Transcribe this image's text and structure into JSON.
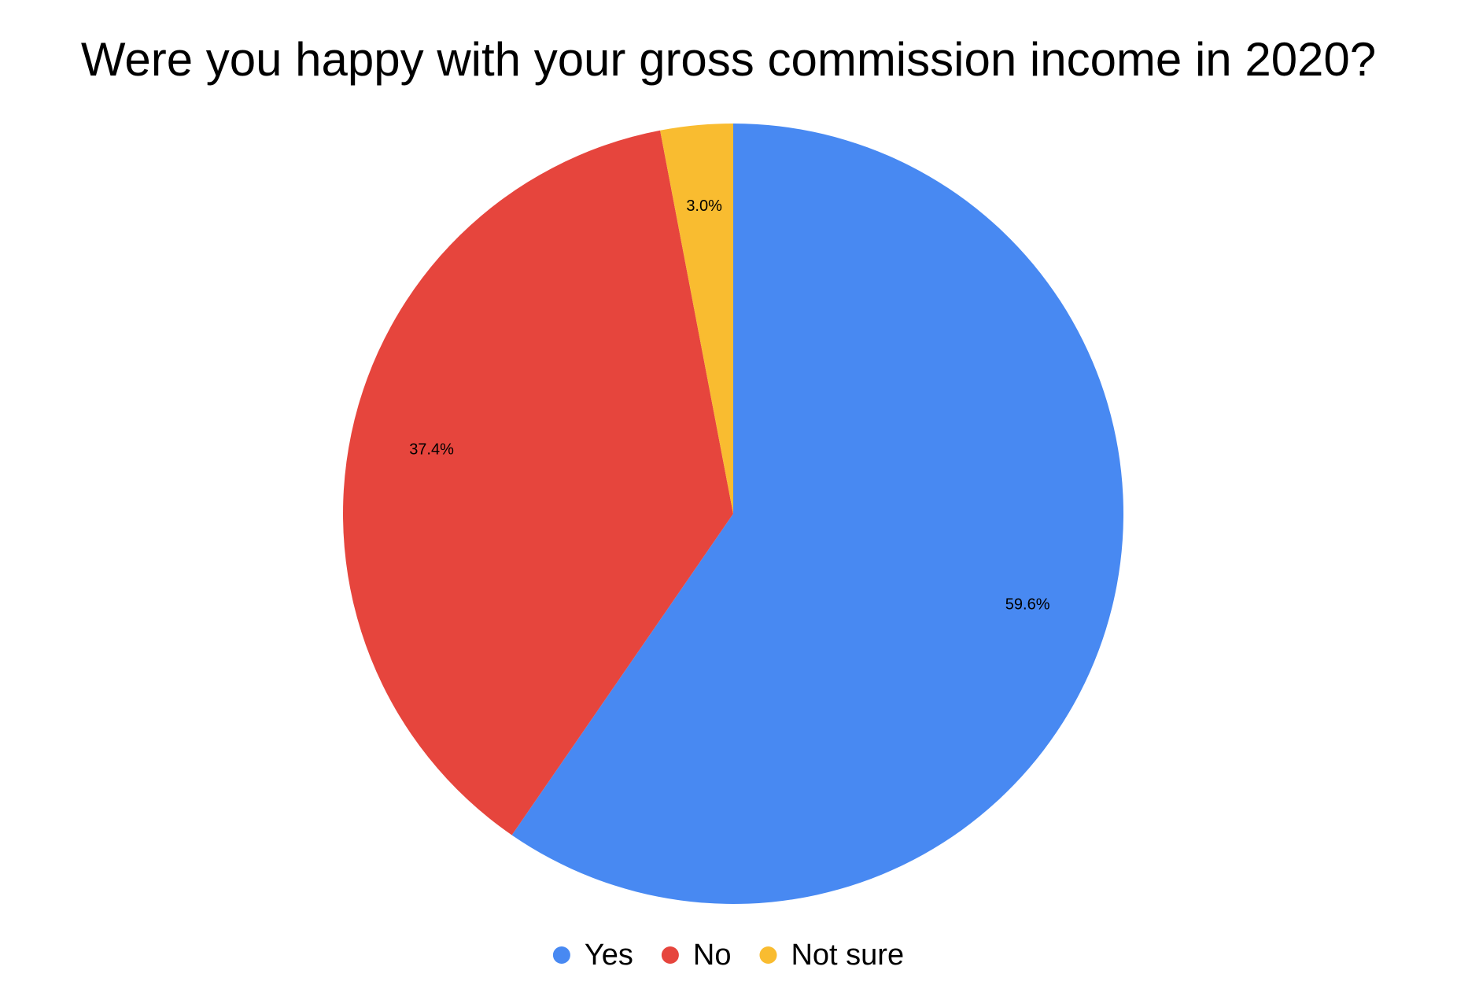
{
  "chart_data": {
    "type": "pie",
    "title": "Were you happy with your gross commission income in 2020?",
    "categories": [
      "Yes",
      "No",
      "Not sure"
    ],
    "values": [
      59.6,
      37.4,
      3.0
    ],
    "value_labels": [
      "59.6%",
      "37.4%",
      "3.0%"
    ],
    "colors": [
      "#4889f2",
      "#e6453d",
      "#f9bc30"
    ],
    "legend": "bottom"
  }
}
